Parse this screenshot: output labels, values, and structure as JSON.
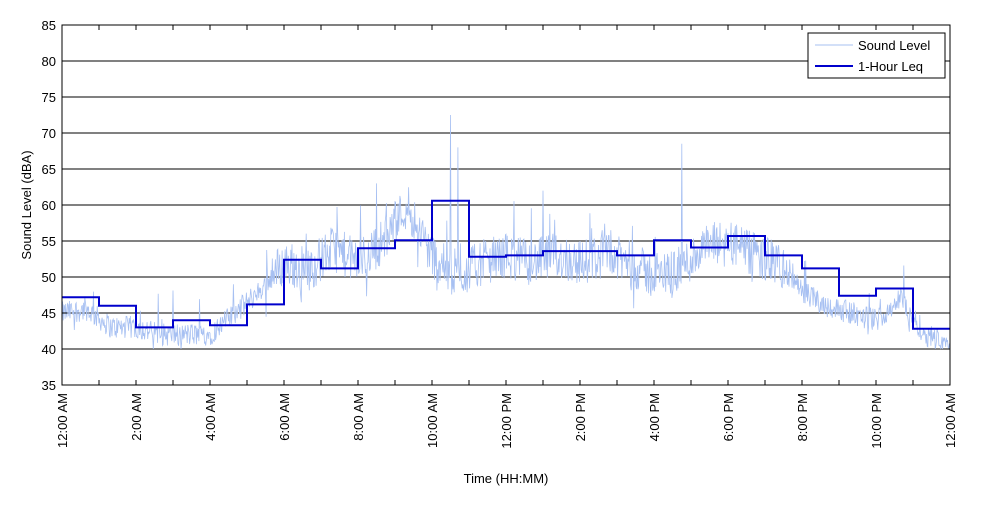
{
  "chart_data": {
    "type": "line",
    "xlabel": "Time (HH:MM)",
    "ylabel": "Sound Level (dBA)",
    "ylim": [
      35,
      85
    ],
    "xlim_hours": [
      0,
      24
    ],
    "y_ticks": [
      35,
      40,
      45,
      50,
      55,
      60,
      65,
      70,
      75,
      80,
      85
    ],
    "x_tick_labels": [
      "12:00 AM",
      "2:00 AM",
      "4:00 AM",
      "6:00 AM",
      "8:00 AM",
      "10:00 AM",
      "12:00 PM",
      "2:00 PM",
      "4:00 PM",
      "6:00 PM",
      "8:00 PM",
      "10:00 PM",
      "12:00 AM"
    ],
    "grid": "horizontal",
    "legend_position": "top-right",
    "colors": {
      "sound_level": "#a7c0f2",
      "leq": "#0000cc"
    },
    "series": [
      {
        "name": "Sound Level",
        "style": "thin line",
        "base_profile": [
          45,
          45.5,
          43,
          43,
          42,
          42,
          42,
          45,
          48,
          52,
          51,
          54,
          52,
          55,
          60,
          53,
          50,
          52,
          53,
          52,
          53,
          52,
          53,
          52,
          50,
          51,
          54,
          55,
          53,
          52,
          48,
          46,
          45,
          44,
          47,
          42,
          41
        ],
        "spikes": [
          {
            "hour": 10.5,
            "value": 72.5
          },
          {
            "hour": 10.7,
            "value": 68
          },
          {
            "hour": 16.75,
            "value": 68.5
          },
          {
            "hour": 8.5,
            "value": 63
          },
          {
            "hour": 13.0,
            "value": 62
          }
        ]
      },
      {
        "name": "1-Hour Leq",
        "style": "step",
        "hours": [
          "12:00 AM",
          "1:00 AM",
          "2:00 AM",
          "3:00 AM",
          "4:00 AM",
          "5:00 AM",
          "6:00 AM",
          "7:00 AM",
          "8:00 AM",
          "9:00 AM",
          "10:00 AM",
          "11:00 AM",
          "12:00 PM",
          "1:00 PM",
          "2:00 PM",
          "3:00 PM",
          "4:00 PM",
          "5:00 PM",
          "6:00 PM",
          "7:00 PM",
          "8:00 PM",
          "9:00 PM",
          "10:00 PM",
          "11:00 PM"
        ],
        "values": [
          47.2,
          46.0,
          43.0,
          44.0,
          43.3,
          46.2,
          52.4,
          51.2,
          54.0,
          55.1,
          60.6,
          52.8,
          53.0,
          53.6,
          53.6,
          53.0,
          55.1,
          54.1,
          55.7,
          53.0,
          51.2,
          47.4,
          48.4,
          42.8
        ]
      }
    ]
  }
}
